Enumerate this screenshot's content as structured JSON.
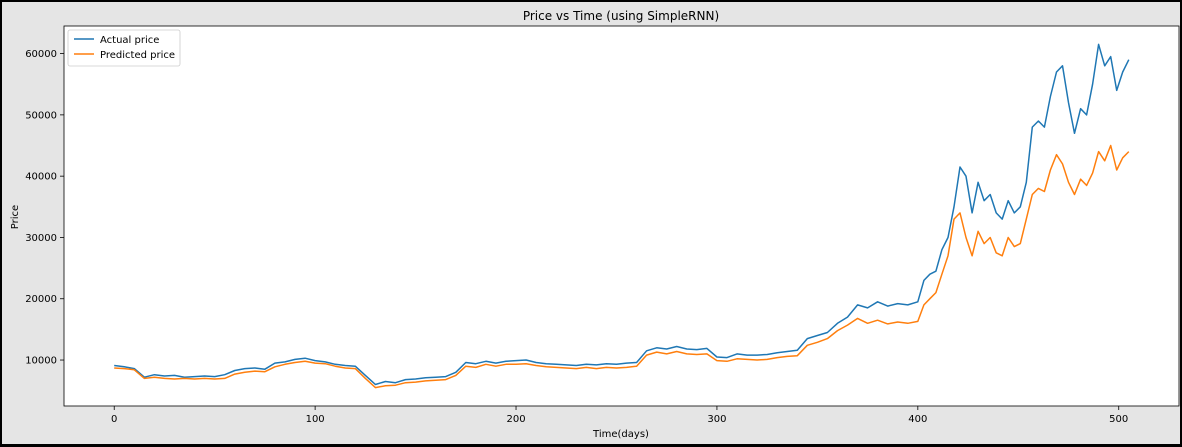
{
  "chart_data": {
    "type": "line",
    "title": "Price vs Time (using SimpleRNN)",
    "xlabel": "Time(days)",
    "ylabel": "Price",
    "xlim": [
      -25,
      530
    ],
    "ylim": [
      2500,
      64500
    ],
    "xticks": [
      0,
      100,
      200,
      300,
      400,
      500
    ],
    "yticks": [
      10000,
      20000,
      30000,
      40000,
      50000,
      60000
    ],
    "grid": false,
    "legend_position": "top-left",
    "x": [
      0,
      5,
      10,
      15,
      20,
      25,
      30,
      35,
      40,
      45,
      50,
      55,
      60,
      65,
      70,
      75,
      80,
      85,
      90,
      95,
      100,
      105,
      110,
      115,
      120,
      125,
      130,
      135,
      140,
      145,
      150,
      155,
      160,
      165,
      170,
      175,
      180,
      185,
      190,
      195,
      200,
      205,
      210,
      215,
      220,
      225,
      230,
      235,
      240,
      245,
      250,
      255,
      260,
      265,
      270,
      275,
      280,
      285,
      290,
      295,
      300,
      305,
      310,
      315,
      320,
      325,
      330,
      335,
      340,
      345,
      350,
      355,
      360,
      365,
      370,
      375,
      380,
      385,
      390,
      395,
      400,
      403,
      406,
      409,
      412,
      415,
      418,
      421,
      424,
      427,
      430,
      433,
      436,
      439,
      442,
      445,
      448,
      451,
      454,
      457,
      460,
      463,
      466,
      469,
      472,
      475,
      478,
      481,
      484,
      487,
      490,
      493,
      496,
      499,
      502,
      505
    ],
    "series": [
      {
        "name": "Actual price",
        "color": "#1f77b4",
        "values": [
          9100,
          8900,
          8600,
          7200,
          7600,
          7400,
          7500,
          7200,
          7300,
          7400,
          7300,
          7600,
          8300,
          8600,
          8700,
          8500,
          9500,
          9700,
          10100,
          10300,
          9900,
          9700,
          9300,
          9100,
          9000,
          7500,
          6000,
          6500,
          6300,
          6800,
          6900,
          7100,
          7200,
          7300,
          8000,
          9600,
          9400,
          9800,
          9500,
          9800,
          9900,
          10000,
          9600,
          9400,
          9300,
          9200,
          9100,
          9300,
          9200,
          9400,
          9300,
          9500,
          9600,
          11500,
          12000,
          11800,
          12200,
          11800,
          11700,
          11900,
          10500,
          10400,
          11000,
          10800,
          10800,
          10900,
          11200,
          11400,
          11600,
          13500,
          14000,
          14500,
          16000,
          17000,
          19000,
          18500,
          19500,
          18800,
          19200,
          19000,
          19500,
          23000,
          24000,
          24500,
          28000,
          30000,
          35000,
          41500,
          40000,
          34000,
          39000,
          36000,
          37000,
          34000,
          33000,
          36000,
          34000,
          35000,
          39000,
          48000,
          49000,
          48000,
          53000,
          57000,
          58000,
          52000,
          47000,
          51000,
          50000,
          55000,
          61500,
          58000,
          59500,
          54000,
          57000,
          59000
        ]
      },
      {
        "name": "Predicted price",
        "color": "#ff7f0e",
        "values": [
          8700,
          8600,
          8400,
          7000,
          7200,
          7000,
          6900,
          7000,
          6900,
          7000,
          6900,
          7000,
          7700,
          8000,
          8200,
          8100,
          8900,
          9300,
          9600,
          9800,
          9500,
          9400,
          9000,
          8700,
          8600,
          7000,
          5500,
          5800,
          5900,
          6300,
          6400,
          6600,
          6700,
          6800,
          7500,
          9000,
          8800,
          9300,
          9000,
          9300,
          9300,
          9400,
          9100,
          8900,
          8800,
          8700,
          8600,
          8800,
          8600,
          8800,
          8700,
          8800,
          9000,
          10800,
          11300,
          11000,
          11400,
          11000,
          10900,
          11000,
          9900,
          9800,
          10200,
          10100,
          10000,
          10100,
          10400,
          10600,
          10700,
          12400,
          12900,
          13500,
          14800,
          15700,
          16800,
          16000,
          16500,
          15900,
          16200,
          16000,
          16300,
          19000,
          20000,
          21000,
          24000,
          27000,
          33000,
          34000,
          30000,
          27000,
          31000,
          29000,
          30000,
          27500,
          27000,
          30000,
          28500,
          29000,
          33000,
          37000,
          38000,
          37500,
          41000,
          43500,
          42000,
          39000,
          37000,
          39500,
          38500,
          40500,
          44000,
          42500,
          45000,
          41000,
          43000,
          44000
        ]
      }
    ]
  }
}
